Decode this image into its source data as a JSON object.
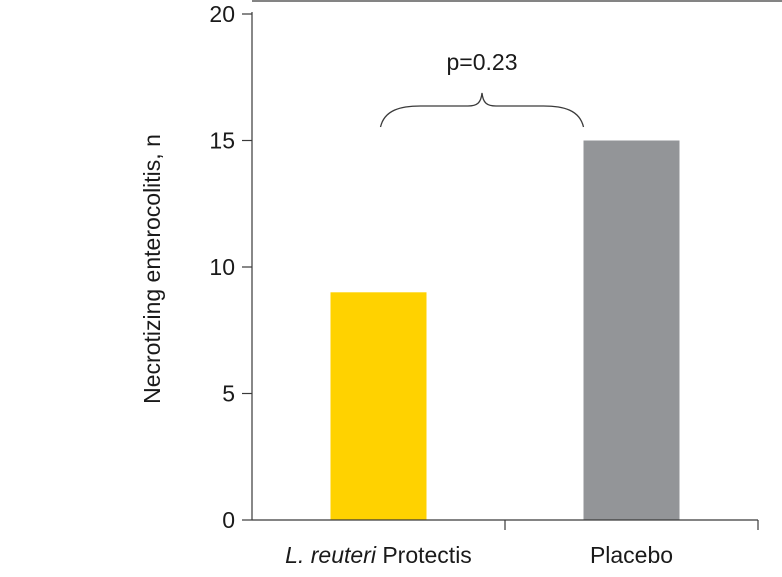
{
  "chart_data": {
    "type": "bar",
    "categories": [
      {
        "italic": "L. reuteri",
        "rest": " Protectis"
      },
      {
        "italic": "",
        "rest": "Placebo"
      }
    ],
    "values": [
      9,
      15
    ],
    "bar_colors": [
      "#ffd200",
      "#939598"
    ],
    "ylabel": "Necrotizing enterocolitis, n",
    "xlabel": "",
    "title": "",
    "ylim": [
      0,
      20
    ],
    "yticks": [
      0,
      5,
      10,
      15,
      20
    ],
    "grid": false,
    "annotation": {
      "text": "p=0.23",
      "type": "brace",
      "spans": [
        0,
        1
      ]
    }
  }
}
